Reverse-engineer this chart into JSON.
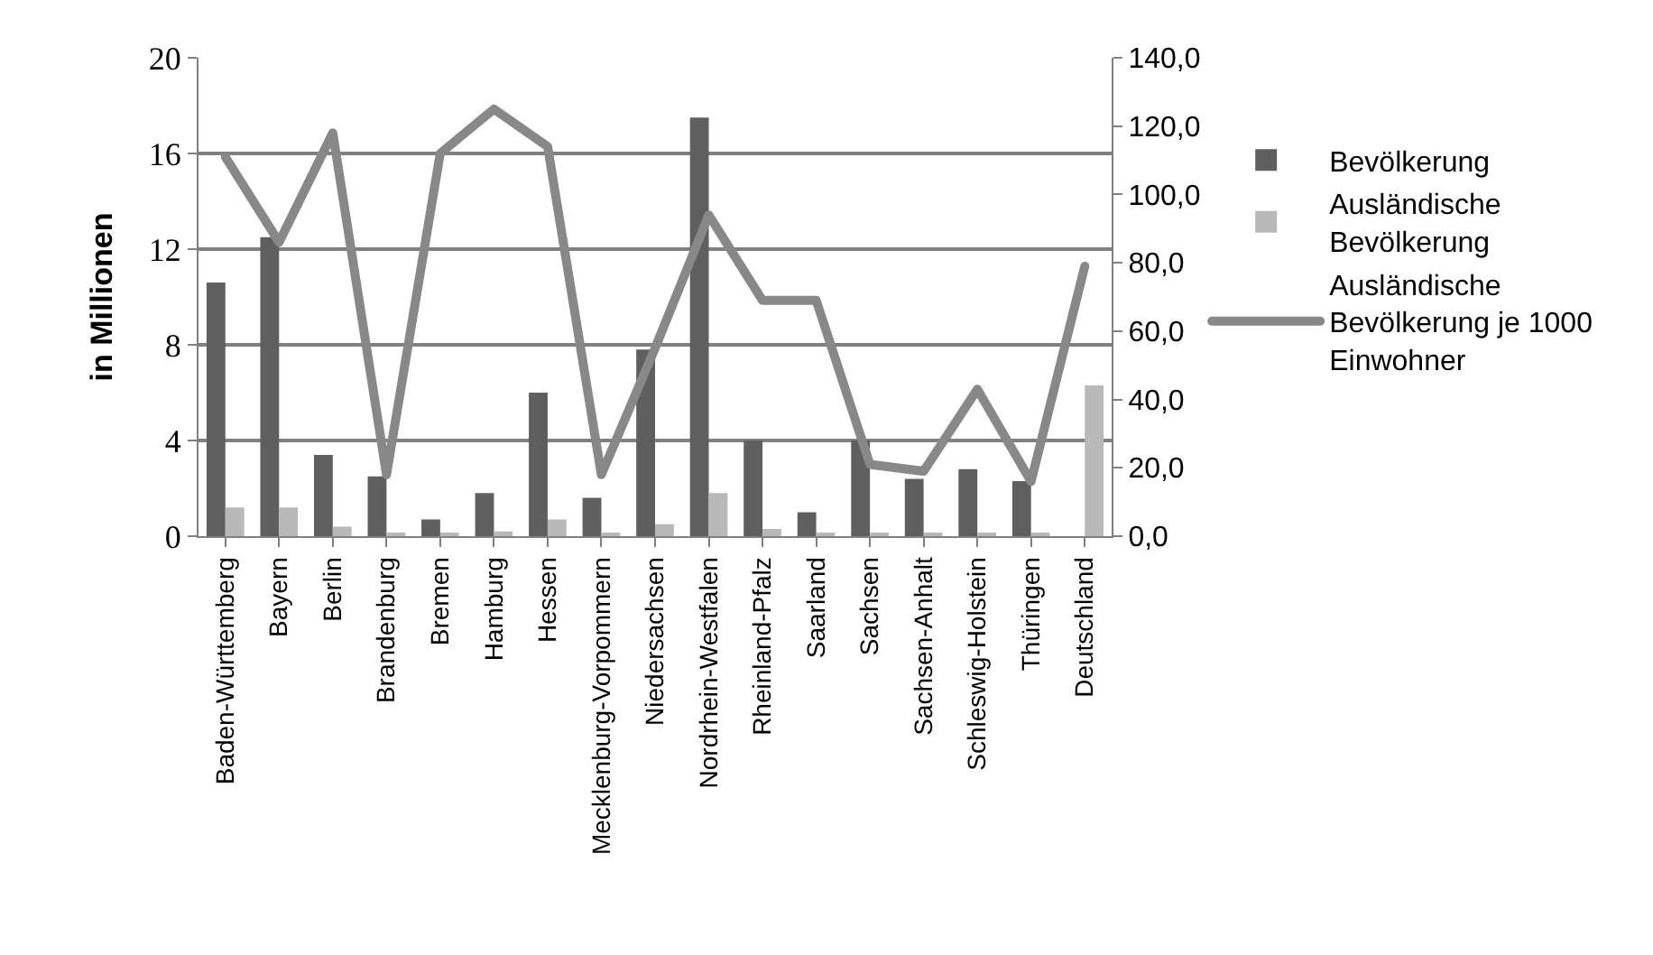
{
  "chart_data": {
    "type": "bar",
    "ylabel": "in Millionen",
    "categories": [
      "Baden-Württemberg",
      "Bayern",
      "Berlin",
      "Brandenburg",
      "Bremen",
      "Hamburg",
      "Hessen",
      "Mecklenburg-Vorpommern",
      "Niedersachsen",
      "Nordrhein-Westfalen",
      "Rheinland-Pfalz",
      "Saarland",
      "Sachsen",
      "Sachsen-Anhalt",
      "Schleswig-Holstein",
      "Thüringen",
      "Deutschland"
    ],
    "series": [
      {
        "name": "Bevölkerung",
        "color": "#5f5f5f",
        "values": [
          10.6,
          12.5,
          3.4,
          2.5,
          0.7,
          1.8,
          6.0,
          1.6,
          7.8,
          17.5,
          4.0,
          1.0,
          4.0,
          2.4,
          2.8,
          2.3,
          null
        ]
      },
      {
        "name": "Ausländische Bevölkerung",
        "color": "#b8b8b8",
        "values": [
          1.2,
          1.2,
          0.4,
          0.1,
          0.1,
          0.2,
          0.7,
          0.1,
          0.5,
          1.8,
          0.3,
          0.1,
          0.1,
          0.1,
          0.1,
          0.1,
          6.3
        ]
      },
      {
        "name": "Ausländische Bevölkerung je 1000 Einwohner",
        "type": "line",
        "axis": "y2",
        "color": "#888888",
        "values": [
          111,
          86,
          118,
          18,
          112,
          125,
          114,
          18,
          55,
          94,
          69,
          69,
          21,
          19,
          43,
          16,
          79
        ]
      }
    ],
    "ylim": [
      0,
      20
    ],
    "yticks": [
      0,
      4,
      8,
      12,
      16,
      20
    ],
    "y2lim": [
      0,
      140
    ],
    "y2ticks": [
      {
        "value": 0,
        "label": "0,0"
      },
      {
        "value": 20,
        "label": "20,0"
      },
      {
        "value": 40,
        "label": "40,0"
      },
      {
        "value": 60,
        "label": "60,0"
      },
      {
        "value": 80,
        "label": "80,0"
      },
      {
        "value": 100,
        "label": "100,0"
      },
      {
        "value": 120,
        "label": "120,0"
      },
      {
        "value": 140,
        "label": "140,0"
      }
    ],
    "grid": "y",
    "legend": "right",
    "marker": "none",
    "line_style": "solid"
  }
}
